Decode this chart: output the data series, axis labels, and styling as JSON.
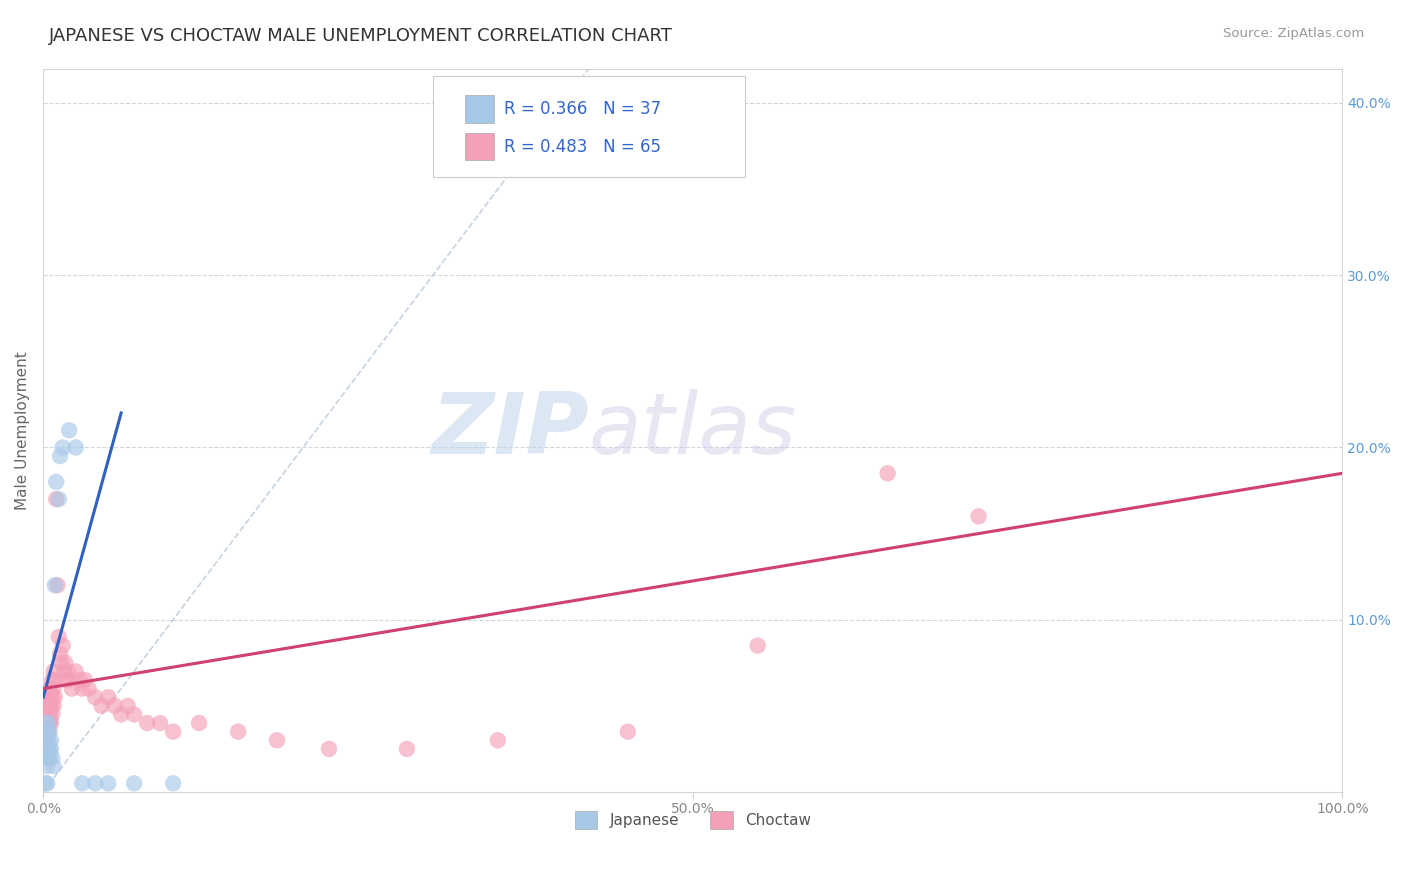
{
  "title": "JAPANESE VS CHOCTAW MALE UNEMPLOYMENT CORRELATION CHART",
  "source": "Source: ZipAtlas.com",
  "ylabel": "Male Unemployment",
  "xlim": [
    0,
    1.0
  ],
  "ylim": [
    0,
    0.42
  ],
  "japanese_R": 0.366,
  "japanese_N": 37,
  "choctaw_R": 0.483,
  "choctaw_N": 65,
  "japanese_color": "#a8c8e8",
  "choctaw_color": "#f4a0b8",
  "japanese_line_color": "#3060c0",
  "choctaw_line_color": "#d04070",
  "diagonal_color": "#b8c8d8",
  "background_color": "#ffffff",
  "grid_color": "#c8d4e0",
  "watermark_zip": "ZIP",
  "watermark_atlas": "atlas",
  "japanese_points": [
    [
      0.001,
      0.035
    ],
    [
      0.001,
      0.03
    ],
    [
      0.001,
      0.025
    ],
    [
      0.002,
      0.04
    ],
    [
      0.002,
      0.03
    ],
    [
      0.002,
      0.025
    ],
    [
      0.002,
      0.02
    ],
    [
      0.003,
      0.035
    ],
    [
      0.003,
      0.03
    ],
    [
      0.003,
      0.025
    ],
    [
      0.003,
      0.02
    ],
    [
      0.003,
      0.015
    ],
    [
      0.004,
      0.04
    ],
    [
      0.004,
      0.03
    ],
    [
      0.004,
      0.025
    ],
    [
      0.004,
      0.02
    ],
    [
      0.005,
      0.035
    ],
    [
      0.005,
      0.025
    ],
    [
      0.005,
      0.02
    ],
    [
      0.006,
      0.03
    ],
    [
      0.006,
      0.025
    ],
    [
      0.007,
      0.02
    ],
    [
      0.008,
      0.015
    ],
    [
      0.009,
      0.12
    ],
    [
      0.01,
      0.18
    ],
    [
      0.012,
      0.17
    ],
    [
      0.013,
      0.195
    ],
    [
      0.015,
      0.2
    ],
    [
      0.02,
      0.21
    ],
    [
      0.025,
      0.2
    ],
    [
      0.03,
      0.005
    ],
    [
      0.04,
      0.005
    ],
    [
      0.05,
      0.005
    ],
    [
      0.07,
      0.005
    ],
    [
      0.1,
      0.005
    ],
    [
      0.003,
      0.005
    ],
    [
      0.002,
      0.005
    ]
  ],
  "choctaw_points": [
    [
      0.001,
      0.04
    ],
    [
      0.001,
      0.035
    ],
    [
      0.002,
      0.045
    ],
    [
      0.002,
      0.04
    ],
    [
      0.002,
      0.035
    ],
    [
      0.003,
      0.05
    ],
    [
      0.003,
      0.04
    ],
    [
      0.003,
      0.035
    ],
    [
      0.003,
      0.03
    ],
    [
      0.004,
      0.055
    ],
    [
      0.004,
      0.05
    ],
    [
      0.004,
      0.04
    ],
    [
      0.004,
      0.035
    ],
    [
      0.005,
      0.06
    ],
    [
      0.005,
      0.05
    ],
    [
      0.005,
      0.045
    ],
    [
      0.005,
      0.04
    ],
    [
      0.006,
      0.055
    ],
    [
      0.006,
      0.05
    ],
    [
      0.006,
      0.04
    ],
    [
      0.007,
      0.065
    ],
    [
      0.007,
      0.055
    ],
    [
      0.007,
      0.045
    ],
    [
      0.008,
      0.07
    ],
    [
      0.008,
      0.06
    ],
    [
      0.008,
      0.05
    ],
    [
      0.009,
      0.065
    ],
    [
      0.009,
      0.055
    ],
    [
      0.01,
      0.17
    ],
    [
      0.011,
      0.12
    ],
    [
      0.012,
      0.09
    ],
    [
      0.013,
      0.08
    ],
    [
      0.014,
      0.075
    ],
    [
      0.015,
      0.085
    ],
    [
      0.016,
      0.07
    ],
    [
      0.017,
      0.075
    ],
    [
      0.018,
      0.065
    ],
    [
      0.019,
      0.07
    ],
    [
      0.02,
      0.065
    ],
    [
      0.022,
      0.06
    ],
    [
      0.025,
      0.07
    ],
    [
      0.028,
      0.065
    ],
    [
      0.03,
      0.06
    ],
    [
      0.032,
      0.065
    ],
    [
      0.035,
      0.06
    ],
    [
      0.04,
      0.055
    ],
    [
      0.045,
      0.05
    ],
    [
      0.05,
      0.055
    ],
    [
      0.055,
      0.05
    ],
    [
      0.06,
      0.045
    ],
    [
      0.065,
      0.05
    ],
    [
      0.07,
      0.045
    ],
    [
      0.08,
      0.04
    ],
    [
      0.09,
      0.04
    ],
    [
      0.1,
      0.035
    ],
    [
      0.12,
      0.04
    ],
    [
      0.15,
      0.035
    ],
    [
      0.18,
      0.03
    ],
    [
      0.22,
      0.025
    ],
    [
      0.28,
      0.025
    ],
    [
      0.35,
      0.03
    ],
    [
      0.45,
      0.035
    ],
    [
      0.55,
      0.085
    ],
    [
      0.65,
      0.185
    ],
    [
      0.72,
      0.16
    ]
  ],
  "jp_line": [
    [
      0.0,
      0.055
    ],
    [
      0.06,
      0.22
    ]
  ],
  "ch_line": [
    [
      0.0,
      0.06
    ],
    [
      1.0,
      0.185
    ]
  ]
}
